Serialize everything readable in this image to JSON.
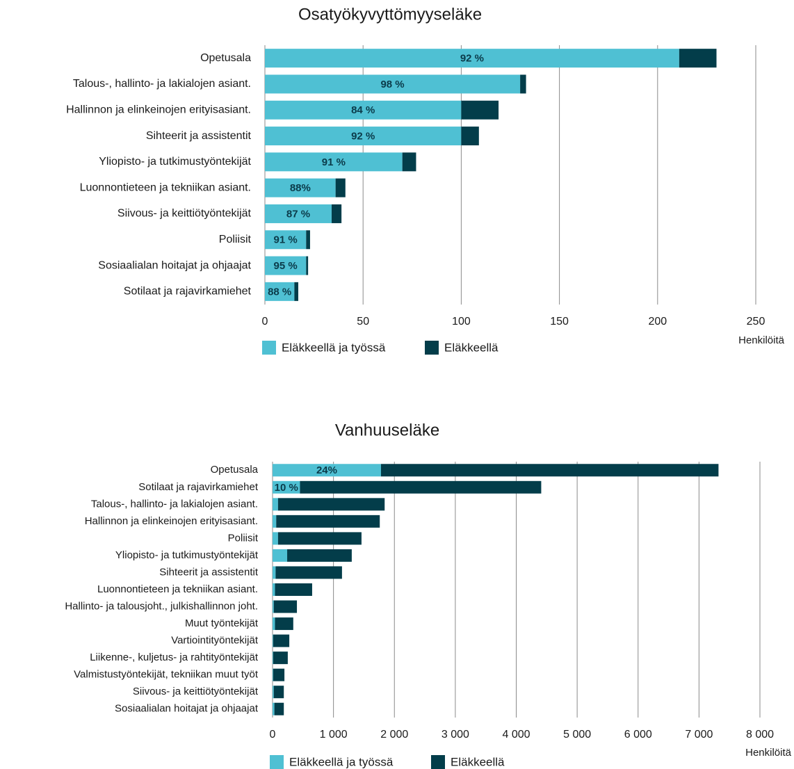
{
  "chart_data": [
    {
      "type": "stacked-barh",
      "title": "Osatyökyvyttömyyseläke",
      "x_label": "Henkilöitä",
      "categories": [
        "Opetusala",
        "Talous-, hallinto- ja lakialojen asiant.",
        "Hallinnon ja elinkeinojen erityisasiant.",
        "Sihteerit ja assistentit",
        "Yliopisto- ja tutkimustyöntekijät",
        "Luonnontieteen ja tekniikan asiant.",
        "Siivous- ja keittiötyöntekijät",
        "Poliisit",
        "Sosiaalialan hoitajat ja ohjaajat",
        "Sotilaat ja rajavirkamiehet"
      ],
      "series": [
        {
          "name": "Eläkkeellä ja työssä",
          "color": "#4fc0d3",
          "values": [
            211,
            130,
            100,
            100,
            70,
            36,
            34,
            21,
            21,
            15
          ],
          "bar_labels": [
            "92 %",
            "98 %",
            "84 %",
            "92 %",
            "91 %",
            "88%",
            "87 %",
            "91 %",
            "95 %",
            "88 %"
          ]
        },
        {
          "name": "Eläkkeellä",
          "color": "#033d4a",
          "values": [
            19,
            3,
            19,
            9,
            7,
            5,
            5,
            2,
            1,
            2
          ]
        }
      ],
      "xlim": [
        0,
        250
      ],
      "xticks": [
        0,
        50,
        100,
        150,
        200,
        250
      ],
      "grid": true
    },
    {
      "type": "stacked-barh",
      "title": "Vanhuuseläke",
      "x_label": "Henkilöitä",
      "categories": [
        "Opetusala",
        "Sotilaat ja rajavirkamiehet",
        "Talous-, hallinto- ja lakialojen asiant.",
        "Hallinnon ja elinkeinojen erityisasiant.",
        "Poliisit",
        "Yliopisto- ja tutkimustyöntekijät",
        "Sihteerit ja assistentit",
        "Luonnontieteen ja tekniikan asiant.",
        "Hallinto- ja talousjoht., julkishallinnon joht.",
        "Muut työntekijät",
        "Vartiointityöntekijät",
        "Liikenne-, kuljetus- ja rahtityöntekijät",
        "Valmistustyöntekijät, tekniikan muut työt",
        "Siivous- ja keittiötyöntekijät",
        "Sosiaalialan hoitajat ja ohjaajat"
      ],
      "series": [
        {
          "name": "Eläkkeellä ja työssä",
          "color": "#4fc0d3",
          "values": [
            1780,
            450,
            90,
            60,
            90,
            240,
            50,
            40,
            20,
            40,
            10,
            10,
            10,
            20,
            30
          ],
          "bar_labels": [
            "24%",
            "10 %",
            null,
            null,
            null,
            null,
            null,
            null,
            null,
            null,
            null,
            null,
            null,
            null,
            null
          ]
        },
        {
          "name": "Eläkkeellä",
          "color": "#033d4a",
          "values": [
            5540,
            3960,
            1750,
            1700,
            1370,
            1060,
            1090,
            610,
            380,
            300,
            265,
            240,
            185,
            165,
            155
          ]
        }
      ],
      "xlim": [
        0,
        8000
      ],
      "xticks": [
        0,
        {
          "value": 1000,
          "label": "1 000"
        },
        {
          "value": 2000,
          "label": "2 000"
        },
        {
          "value": 3000,
          "label": "3 000"
        },
        {
          "value": 4000,
          "label": "4 000"
        },
        {
          "value": 5000,
          "label": "5 000"
        },
        {
          "value": 6000,
          "label": "6 000"
        },
        {
          "value": 7000,
          "label": "7 000"
        },
        {
          "value": 8000,
          "label": "8 000"
        }
      ],
      "grid": true
    }
  ]
}
